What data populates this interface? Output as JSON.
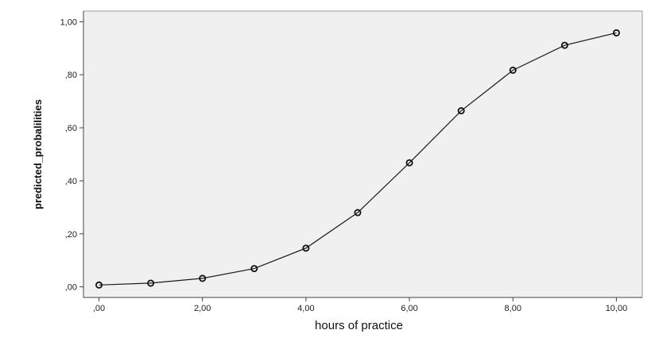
{
  "chart_data": {
    "type": "line",
    "title": "",
    "xlabel": "hours of practice",
    "ylabel": "predicted_probalilities",
    "x": [
      0,
      1,
      2,
      3,
      4,
      5,
      6,
      7,
      8,
      9,
      10
    ],
    "series": [
      {
        "values": [
          0.007,
          0.014,
          0.032,
          0.069,
          0.146,
          0.28,
          0.468,
          0.664,
          0.817,
          0.911,
          0.958
        ]
      }
    ],
    "xlim": [
      -0.3,
      10.5
    ],
    "ylim": [
      -0.04,
      1.04
    ],
    "x_ticks": [
      0,
      2,
      4,
      6,
      8,
      10
    ],
    "x_tick_labels": [
      ",00",
      "2,00",
      "4,00",
      "6,00",
      "8,00",
      "10,00"
    ],
    "y_ticks": [
      0,
      0.2,
      0.4,
      0.6,
      0.8,
      1.0
    ],
    "y_tick_labels": [
      ",00",
      ",20",
      ",40",
      ",60",
      ",80",
      "1,00"
    ],
    "grid": false,
    "marker": "circle",
    "colors": {
      "plot_background": "#f0f0f0",
      "line": "#1a1a1a",
      "marker_stroke": "#111111",
      "axis": "#444444"
    }
  }
}
